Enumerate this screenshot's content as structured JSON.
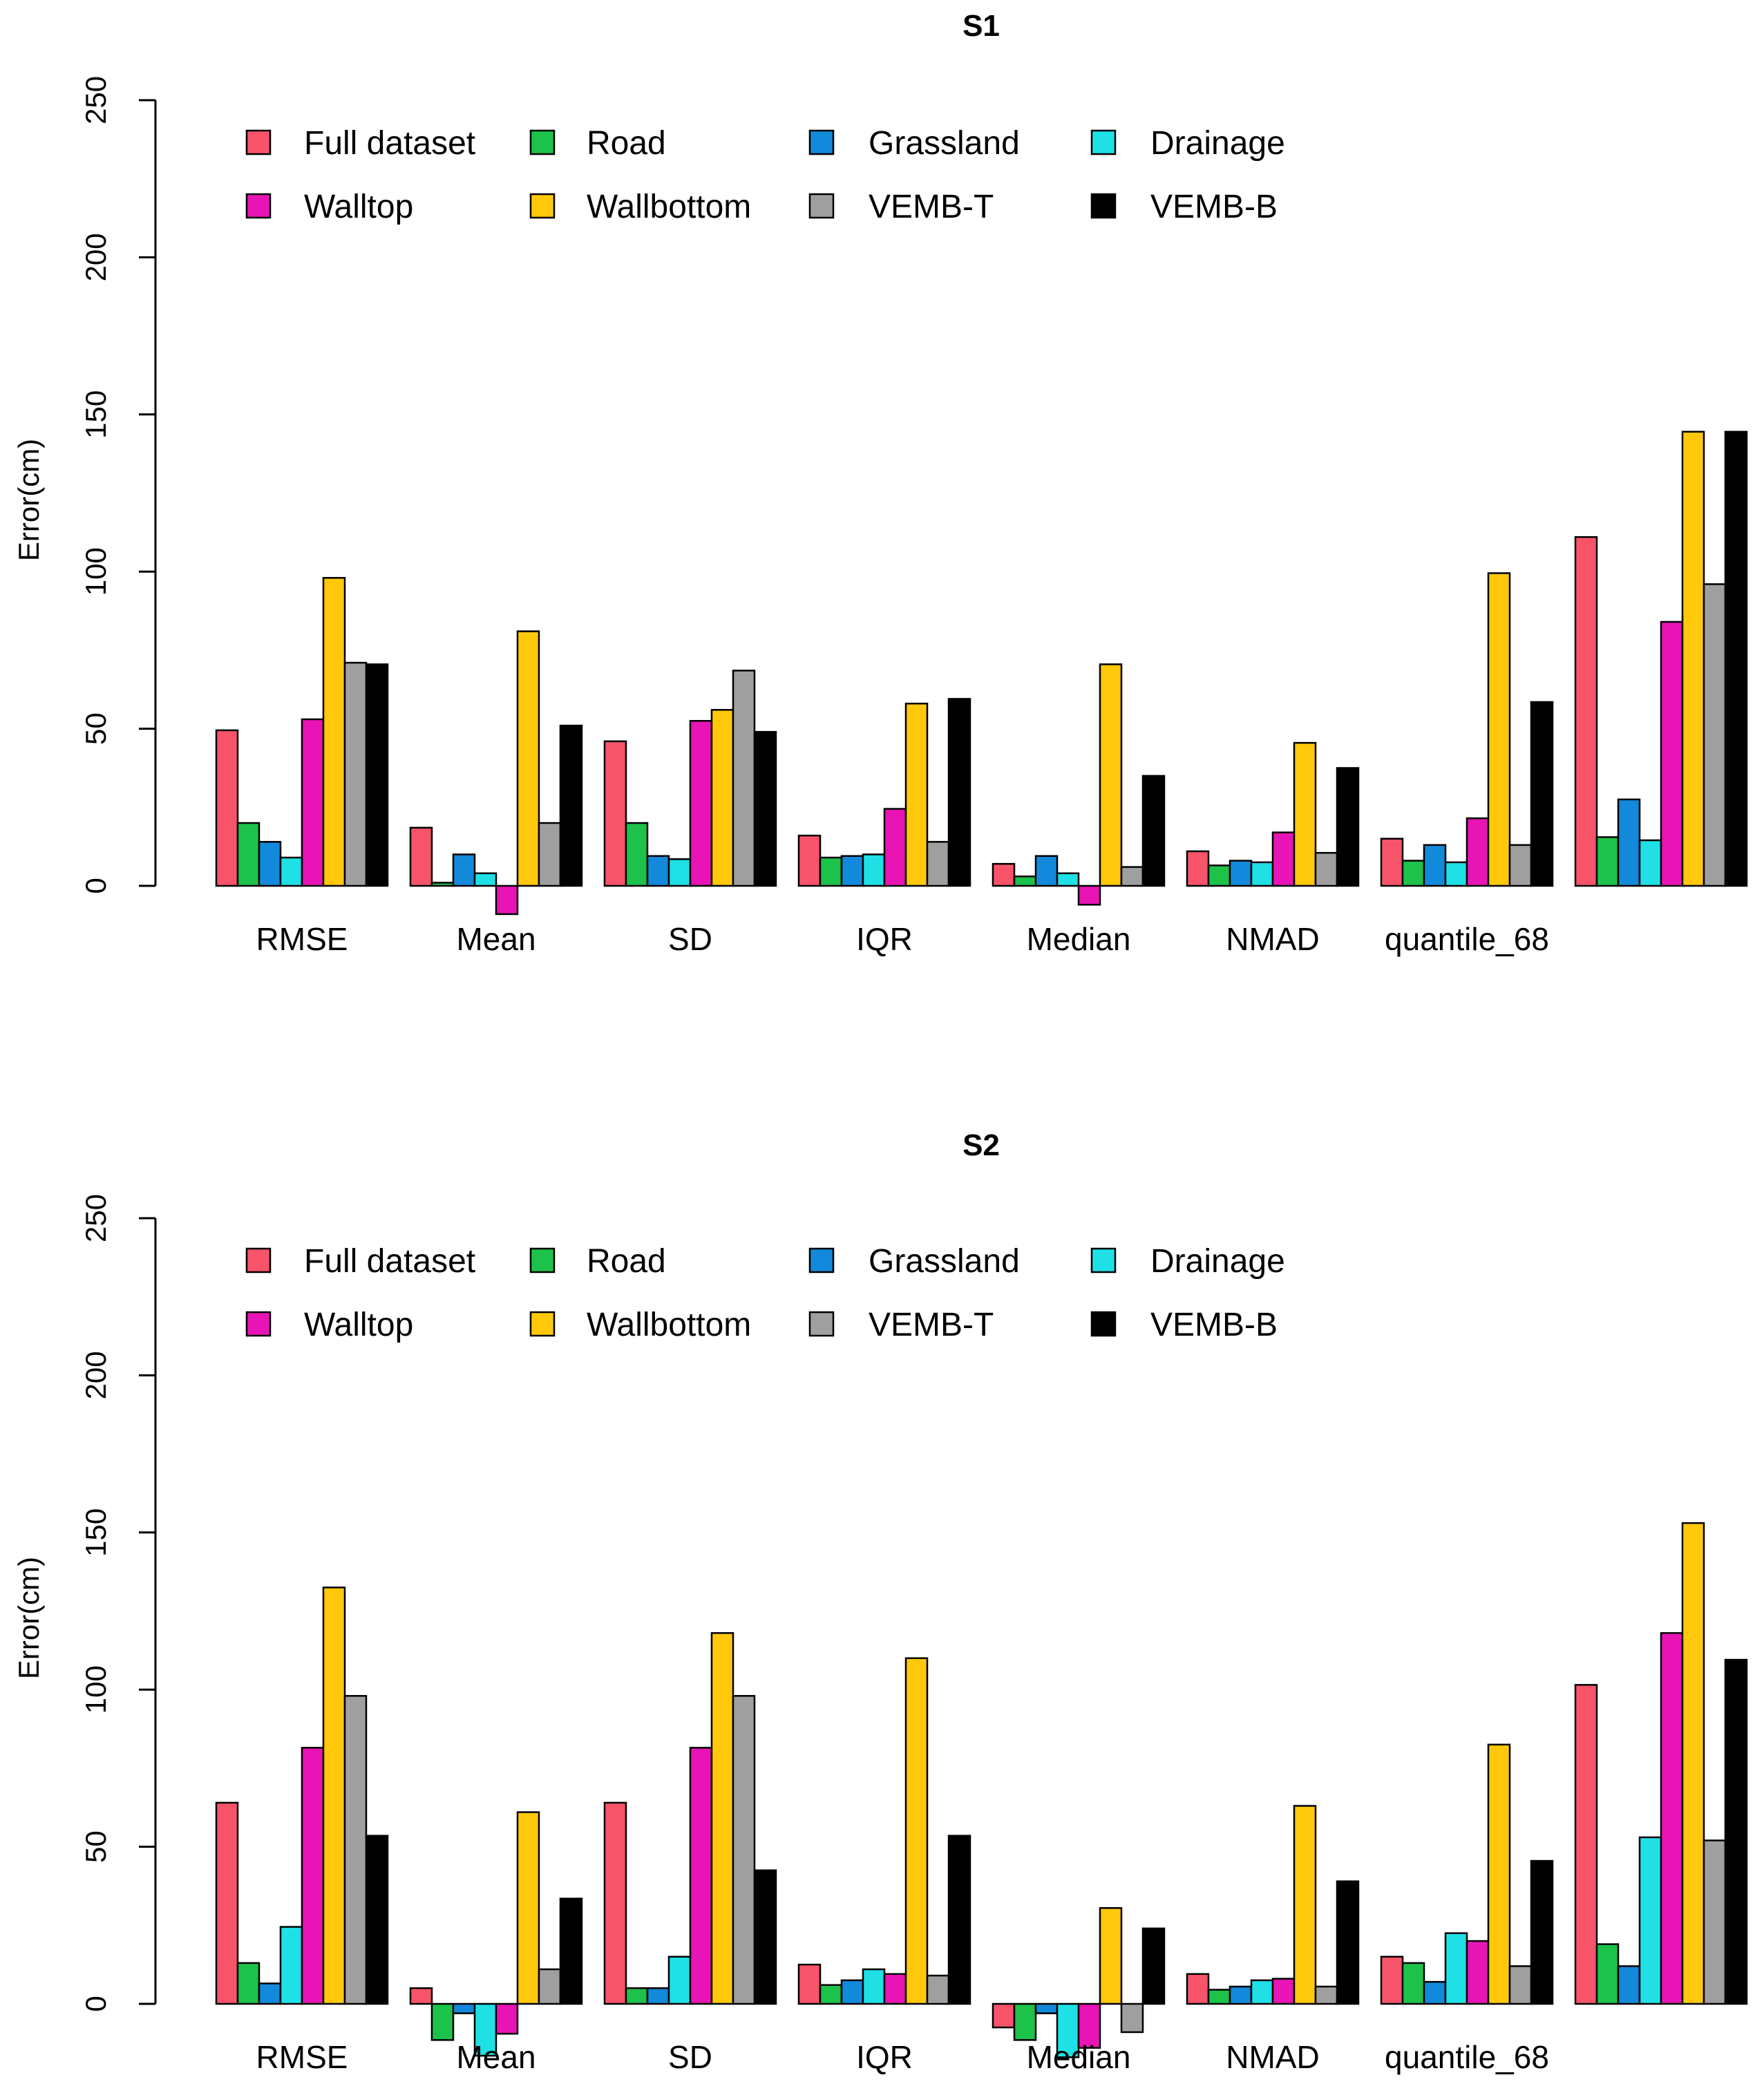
{
  "colors": {
    "full_dataset": "#F7546A",
    "road": "#1DC24A",
    "grassland": "#1389DB",
    "drainage": "#1FE0E5",
    "walltop": "#E814B5",
    "wallbottom": "#FFC80A",
    "vemb_t": "#9F9F9F",
    "vemb_b": "#000000"
  },
  "chart_data": [
    {
      "type": "bar",
      "title": "S1",
      "xlabel": "",
      "ylabel": "Error(cm)",
      "ylim": [
        0,
        250
      ],
      "yticks": [
        "0",
        "50",
        "100",
        "150",
        "200",
        "250"
      ],
      "legend": [
        "Full dataset",
        "Road",
        "Grassland",
        "Drainage",
        "Walltop",
        "Wallbottom",
        "VEMB-T",
        "VEMB-B"
      ],
      "categories": [
        "RMSE",
        "Mean",
        "SD",
        "IQR",
        "Median",
        "NMAD",
        "quantile_68",
        ""
      ],
      "series": [
        {
          "name": "Full dataset",
          "color": "#F7546A",
          "values": [
            49.5,
            18.5,
            46,
            16,
            7,
            11,
            15,
            111
          ]
        },
        {
          "name": "Road",
          "color": "#1DC24A",
          "values": [
            20,
            1,
            20,
            9,
            3,
            6.5,
            8,
            15.5
          ]
        },
        {
          "name": "Grassland",
          "color": "#1389DB",
          "values": [
            14,
            10,
            9.5,
            9.5,
            9.5,
            8,
            13,
            27.5
          ]
        },
        {
          "name": "Drainage",
          "color": "#1FE0E5",
          "values": [
            9,
            4,
            8.5,
            10,
            4,
            7.5,
            7.5,
            14.5
          ]
        },
        {
          "name": "Walltop",
          "color": "#E814B5",
          "values": [
            53,
            -9,
            52.5,
            24.5,
            -6,
            17,
            21.5,
            84
          ]
        },
        {
          "name": "Wallbottom",
          "color": "#FFC80A",
          "values": [
            98,
            81,
            56,
            58,
            70.5,
            45.5,
            99.5,
            144.5
          ]
        },
        {
          "name": "VEMB-T",
          "color": "#9F9F9F",
          "values": [
            71,
            20,
            68.5,
            14,
            6,
            10.5,
            13,
            96
          ]
        },
        {
          "name": "VEMB-B",
          "color": "#000000",
          "values": [
            70.5,
            51,
            49,
            59.5,
            35,
            37.5,
            58.5,
            144.5
          ]
        }
      ]
    },
    {
      "type": "bar",
      "title": "S2",
      "xlabel": "",
      "ylabel": "Error(cm)",
      "ylim": [
        0,
        250
      ],
      "yticks": [
        "0",
        "50",
        "100",
        "150",
        "200",
        "250"
      ],
      "legend": [
        "Full dataset",
        "Road",
        "Grassland",
        "Drainage",
        "Walltop",
        "Wallbottom",
        "VEMB-T",
        "VEMB-B"
      ],
      "categories": [
        "RMSE",
        "Mean",
        "SD",
        "IQR",
        "Median",
        "NMAD",
        "quantile_68",
        ""
      ],
      "series": [
        {
          "name": "Full dataset",
          "color": "#F7546A",
          "values": [
            64,
            5,
            64,
            12.5,
            -7.5,
            9.5,
            15,
            101.5
          ]
        },
        {
          "name": "Road",
          "color": "#1DC24A",
          "values": [
            13,
            -11.5,
            5,
            6,
            -11.5,
            4.5,
            13,
            19
          ]
        },
        {
          "name": "Grassland",
          "color": "#1389DB",
          "values": [
            6.5,
            -3,
            5,
            7.5,
            -3,
            5.5,
            7,
            12
          ]
        },
        {
          "name": "Drainage",
          "color": "#1FE0E5",
          "values": [
            24.5,
            -16.5,
            15,
            11,
            -17,
            7.5,
            22.5,
            53
          ]
        },
        {
          "name": "Walltop",
          "color": "#E814B5",
          "values": [
            81.5,
            -9.5,
            81.5,
            9.5,
            -14,
            8,
            20,
            118
          ]
        },
        {
          "name": "Wallbottom",
          "color": "#FFC80A",
          "values": [
            132.5,
            61,
            118,
            110,
            30.5,
            63,
            82.5,
            153
          ]
        },
        {
          "name": "VEMB-T",
          "color": "#9F9F9F",
          "values": [
            98,
            11,
            98,
            9,
            -9,
            5.5,
            12,
            52
          ]
        },
        {
          "name": "VEMB-B",
          "color": "#000000",
          "values": [
            53.5,
            33.5,
            42.5,
            53.5,
            24,
            39,
            45.5,
            109.5
          ]
        }
      ]
    }
  ]
}
